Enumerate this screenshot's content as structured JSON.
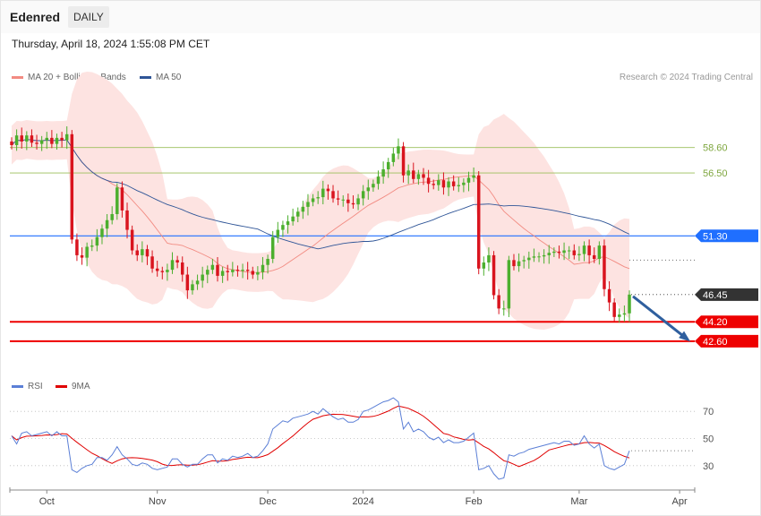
{
  "header": {
    "ticker": "Edenred",
    "period": "DAILY",
    "datetime": "Thursday, April 18, 2024 1:55:08 PM CET"
  },
  "legend": {
    "ma20": {
      "label": "MA 20 + Bollinger Bands",
      "color": "#f28b82"
    },
    "ma50": {
      "label": "MA 50",
      "color": "#2f5597"
    },
    "rsi": {
      "label": "RSI",
      "color": "#5b7fd6"
    },
    "rsi_ma": {
      "label": "9MA",
      "color": "#e00000"
    }
  },
  "credit": "Research © 2024 Trading Central",
  "chart_data": [
    {
      "type": "candlestick",
      "ylim": [
        41.7,
        62.5
      ],
      "x_ticks": [
        "Oct",
        "Nov",
        "Dec",
        "2024",
        "Feb",
        "Mar",
        "Apr"
      ],
      "levels": [
        {
          "value": 58.6,
          "label": "58.60",
          "style": "resistance-minor",
          "color": "#9bbf5a"
        },
        {
          "value": 56.5,
          "label": "56.50",
          "style": "resistance-minor",
          "color": "#9bbf5a"
        },
        {
          "value": 51.3,
          "label": "51.30",
          "style": "resistance",
          "color": "#1f6fff"
        },
        {
          "value": 46.45,
          "label": "46.45",
          "style": "last-price",
          "color": "#333333"
        },
        {
          "value": 44.2,
          "label": "44.20",
          "style": "support",
          "color": "#ee0000"
        },
        {
          "value": 42.6,
          "label": "42.60",
          "style": "support",
          "color": "#ee0000"
        }
      ],
      "candle_colors": {
        "up": "#4caf2e",
        "down": "#d9141e"
      },
      "forecast": {
        "direction": "down",
        "from": 46.3,
        "to": 42.6,
        "color": "#2f5f9e"
      },
      "closes": [
        58.8,
        59.6,
        59.1,
        59.6,
        59.0,
        58.9,
        59.2,
        59.4,
        58.9,
        59.4,
        59.2,
        59.7,
        51.0,
        49.7,
        49.5,
        50.4,
        50.5,
        51.2,
        51.9,
        52.6,
        53.1,
        55.3,
        53.4,
        51.8,
        50.1,
        49.7,
        50.2,
        49.6,
        48.6,
        48.4,
        48.3,
        48.5,
        49.3,
        49.1,
        48.1,
        46.8,
        47.3,
        47.6,
        48.1,
        48.5,
        48.9,
        48.0,
        48.4,
        48.3,
        48.5,
        48.4,
        48.5,
        48.4,
        48.1,
        48.3,
        48.9,
        49.4,
        51.2,
        51.8,
        52.2,
        52.5,
        52.9,
        53.3,
        53.7,
        54.1,
        54.4,
        54.5,
        55.2,
        55.0,
        54.4,
        54.3,
        54.3,
        54.0,
        53.9,
        54.4,
        55.0,
        55.3,
        55.6,
        56.2,
        56.8,
        57.4,
        58.1,
        58.7,
        56.3,
        56.7,
        56.0,
        56.4,
        56.1,
        55.6,
        55.5,
        55.9,
        55.3,
        55.8,
        55.4,
        55.5,
        55.7,
        56.1,
        56.3,
        48.6,
        49.1,
        49.7,
        46.4,
        45.3,
        45.3,
        49.3,
        48.8,
        49.2,
        49.3,
        49.5,
        49.6,
        49.6,
        49.7,
        49.9,
        50.0,
        49.9,
        50.1,
        50.1,
        49.7,
        49.8,
        50.5,
        49.7,
        49.4,
        50.5,
        46.9,
        45.8,
        44.6,
        44.8,
        44.9,
        46.45
      ],
      "rsi_y_ticks": [
        70,
        50,
        30
      ],
      "rsi": [
        52,
        46,
        54,
        55,
        52,
        53,
        54,
        55,
        52,
        55,
        52,
        52,
        27,
        25,
        28,
        30,
        31,
        36,
        36,
        34,
        38,
        44,
        38,
        35,
        31,
        30,
        32,
        31,
        28,
        27,
        28,
        29,
        35,
        35,
        31,
        29,
        31,
        31,
        35,
        38,
        38,
        32,
        35,
        34,
        37,
        36,
        37,
        39,
        36,
        37,
        41,
        46,
        57,
        60,
        63,
        62,
        65,
        66,
        67,
        68,
        70,
        68,
        72,
        69,
        66,
        64,
        65,
        62,
        62,
        64,
        70,
        71,
        73,
        75,
        77,
        78,
        80,
        77,
        57,
        62,
        55,
        57,
        55,
        51,
        49,
        51,
        47,
        49,
        47,
        47,
        48,
        51,
        54,
        27,
        28,
        30,
        24,
        20,
        21,
        38,
        37,
        39,
        40,
        42,
        43,
        44,
        45,
        46,
        47,
        46,
        48,
        48,
        45,
        46,
        52,
        46,
        43,
        46,
        30,
        28,
        27,
        29,
        31,
        41
      ]
    }
  ]
}
